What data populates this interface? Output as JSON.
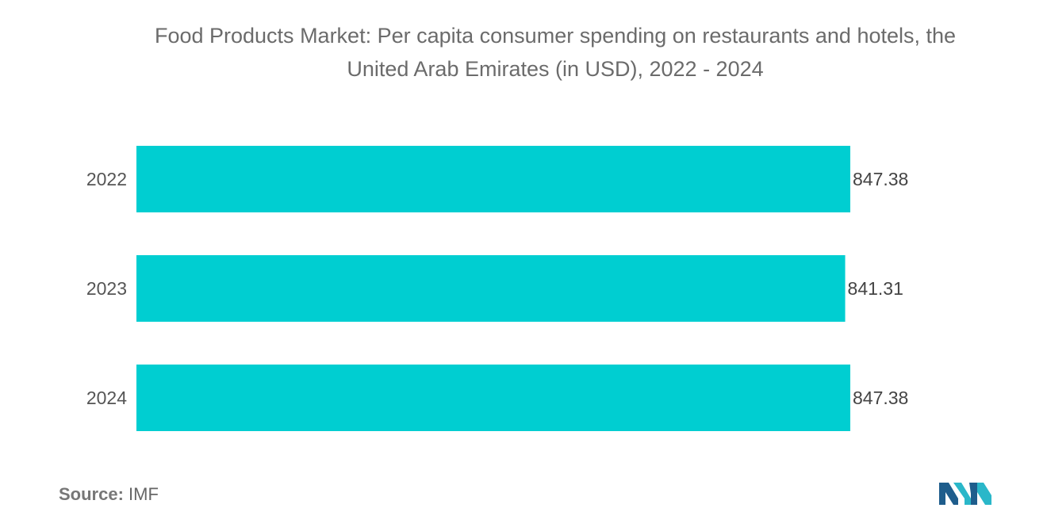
{
  "title_line1": "Food Products Market: Per capita consumer spending on restaurants and hotels, the",
  "title_line2": "United Arab Emirates (in USD), 2022 - 2024",
  "source": {
    "label": "Source:",
    "value": "IMF"
  },
  "logo": {
    "icon": "mordor-intelligence-logo-icon"
  },
  "colors": {
    "bar": "#00CED1",
    "label": "#555555"
  },
  "chart_data": {
    "type": "bar",
    "orientation": "horizontal",
    "categories": [
      "2022",
      "2023",
      "2024"
    ],
    "values": [
      847.38,
      841.31,
      847.38
    ],
    "value_labels": [
      "847.38",
      "841.31",
      "847.38"
    ],
    "xlim": [
      0,
      847.38
    ],
    "grid": false,
    "legend": "none"
  }
}
